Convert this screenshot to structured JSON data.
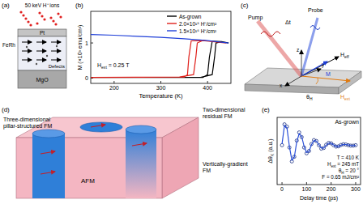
{
  "panel_labels": [
    "(a)",
    "(b)",
    "(c)",
    "(d)",
    "(e)"
  ],
  "diagram_a": {
    "ions": "50 keV H⁺ ions",
    "layers": [
      "Pt",
      "FeRh",
      "MgO"
    ],
    "defects": "Defects"
  },
  "diagram_c": {
    "pump": "Pump",
    "probe": "Probe",
    "delay": "Δt",
    "axes": [
      "z",
      "y",
      "x"
    ],
    "h_eff": [
      "H",
      "eff"
    ],
    "m": "M",
    "h_ext": [
      "H",
      "ext"
    ],
    "theta_h": [
      "θ",
      "H"
    ]
  },
  "diagram_d": {
    "residual": [
      "Two-dimensional",
      "residual FM"
    ],
    "pillar": [
      "Three-dimensional",
      "pillar-structured FM"
    ],
    "afm": "AFM",
    "gradient": [
      "Vertically-gradient",
      "FM"
    ]
  },
  "chart_data": [
    {
      "type": "line",
      "x_label": "Temperature (K)",
      "y_label": "M (×10³ emu/cm³)",
      "annotation": [
        "H",
        "ext",
        " = 0.25 T"
      ],
      "xlim": [
        150,
        450
      ],
      "ylim": [
        -0.15,
        1.9
      ],
      "xticks": [
        200,
        300,
        400
      ],
      "yticks": [
        0,
        1
      ],
      "legend": "upper right",
      "series": [
        {
          "name": "As-grown",
          "color": "#000000",
          "x": [
            150,
            385,
            410,
            415,
            418,
            430,
            445,
            430,
            410,
            404,
            400,
            390,
            150
          ],
          "values": [
            0.02,
            0.02,
            0.1,
            0.6,
            1.0,
            1.04,
            1.0,
            1.04,
            1.05,
            0.6,
            0.1,
            0.02,
            0.02
          ]
        },
        {
          "name": "2.0×10¹⁵ H⁺/cm²",
          "color": "#e0201b",
          "x": [
            150,
            340,
            370,
            375,
            378,
            390,
            440,
            390,
            365,
            360,
            357,
            350,
            150
          ],
          "values": [
            0.02,
            0.03,
            0.1,
            0.6,
            1.0,
            1.07,
            1.0,
            1.07,
            1.06,
            0.6,
            0.1,
            0.03,
            0.02
          ]
        },
        {
          "name": "1.5×10¹⁶ H⁺/cm²",
          "color": "#1f3fd8",
          "x": [
            150,
            200,
            250,
            300,
            350,
            400,
            445
          ],
          "values": [
            1.24,
            1.22,
            1.19,
            1.16,
            1.12,
            1.07,
            1.0
          ]
        }
      ]
    },
    {
      "type": "scatter",
      "title": "As-grown",
      "x_label": "Delay time (ps)",
      "y_label": [
        "Δθ",
        "K",
        " (a.u.)"
      ],
      "annotations": [
        [
          "T = 410 K"
        ],
        [
          "H",
          "ext",
          " = 245 mT"
        ],
        [
          "θ",
          "H",
          " = 20 °"
        ],
        [
          "F = 0.65 mJ/cm²"
        ]
      ],
      "xlim": [
        -20,
        320
      ],
      "ylim": [
        -1.7,
        1.2
      ],
      "xticks": [
        0,
        100,
        200,
        300
      ],
      "tick_labels": "x",
      "x": [
        0,
        10,
        20,
        30,
        40,
        50,
        60,
        70,
        80,
        90,
        100,
        110,
        120,
        130,
        140,
        150,
        160,
        170,
        180,
        190,
        200,
        210,
        220,
        230,
        240,
        250,
        260,
        270,
        280,
        290,
        300
      ],
      "series": [
        {
          "type": "scatter",
          "color": "#1a2f80",
          "marker": "circle",
          "values": [
            0,
            0.9,
            0.8,
            -0.1,
            -0.7,
            -0.5,
            0.2,
            0.55,
            0.35,
            -0.1,
            -0.35,
            -0.25,
            0.05,
            0.22,
            0.18,
            0,
            -0.15,
            -0.12,
            0.02,
            0.1,
            0.08,
            0,
            -0.06,
            -0.05,
            0.01,
            0.04,
            0.03,
            0,
            -0.02,
            -0.02,
            0
          ]
        },
        {
          "type": "line",
          "color": "#2b50d8",
          "values": [
            0.05,
            0.85,
            0.75,
            -0.05,
            -0.65,
            -0.52,
            0.15,
            0.5,
            0.38,
            -0.05,
            -0.32,
            -0.27,
            0.02,
            0.2,
            0.18,
            0.02,
            -0.12,
            -0.12,
            0,
            0.09,
            0.08,
            0.01,
            -0.05,
            -0.05,
            0,
            0.03,
            0.03,
            0.01,
            -0.01,
            -0.02,
            0
          ]
        }
      ]
    }
  ]
}
